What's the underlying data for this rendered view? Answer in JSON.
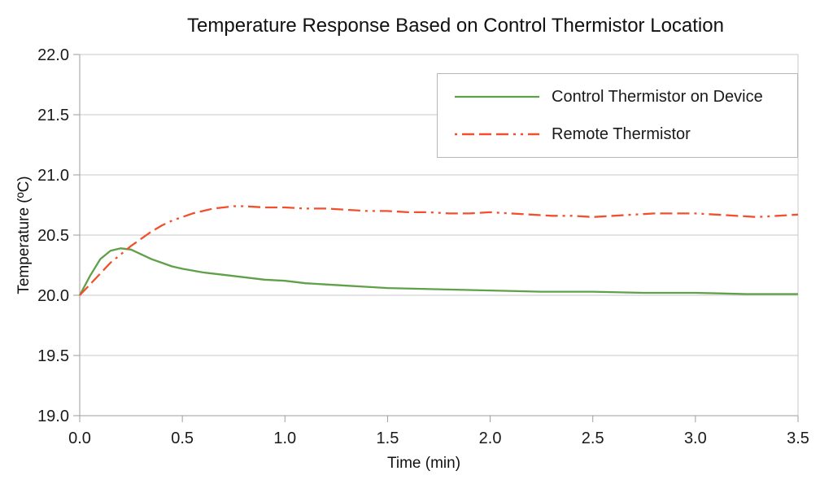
{
  "chart_data": {
    "type": "line",
    "title": "Temperature Response Based on Control Thermistor Location",
    "xlabel": "Time (min)",
    "ylabel": "Temperature (ºC)",
    "xlim": [
      0.0,
      3.5
    ],
    "ylim": [
      19.0,
      22.0
    ],
    "x_ticks": [
      0.0,
      0.5,
      1.0,
      1.5,
      2.0,
      2.5,
      3.0,
      3.5
    ],
    "y_ticks": [
      19.0,
      19.5,
      20.0,
      20.5,
      21.0,
      21.5,
      22.0
    ],
    "grid": "horizontal-only",
    "legend_position": "top-right",
    "colors": {
      "grid": "#c8c8c8",
      "axis": "#9e9e9e",
      "text": "#1a1a1a",
      "legend_border": "#b7b7b7",
      "background": "#ffffff"
    },
    "series": [
      {
        "name": "Control Thermistor on Device",
        "color": "#5fa049",
        "style": "solid",
        "x": [
          0.0,
          0.05,
          0.1,
          0.15,
          0.2,
          0.25,
          0.3,
          0.35,
          0.4,
          0.45,
          0.5,
          0.6,
          0.7,
          0.8,
          0.9,
          1.0,
          1.1,
          1.2,
          1.3,
          1.4,
          1.5,
          1.75,
          2.0,
          2.25,
          2.5,
          2.75,
          3.0,
          3.25,
          3.5
        ],
        "y": [
          20.0,
          20.16,
          20.3,
          20.37,
          20.39,
          20.38,
          20.34,
          20.3,
          20.27,
          20.24,
          20.22,
          20.19,
          20.17,
          20.15,
          20.13,
          20.12,
          20.1,
          20.09,
          20.08,
          20.07,
          20.06,
          20.05,
          20.04,
          20.03,
          20.03,
          20.02,
          20.02,
          20.01,
          20.01
        ]
      },
      {
        "name": "Remote Thermistor",
        "color": "#f0502d",
        "style": "long-dash-dot-dot",
        "x": [
          0.0,
          0.05,
          0.1,
          0.15,
          0.2,
          0.25,
          0.3,
          0.35,
          0.4,
          0.45,
          0.5,
          0.55,
          0.6,
          0.65,
          0.7,
          0.75,
          0.8,
          0.9,
          1.0,
          1.1,
          1.2,
          1.3,
          1.4,
          1.5,
          1.6,
          1.7,
          1.8,
          1.9,
          2.0,
          2.1,
          2.2,
          2.3,
          2.4,
          2.5,
          2.6,
          2.7,
          2.8,
          2.9,
          3.0,
          3.1,
          3.2,
          3.3,
          3.4,
          3.5
        ],
        "y": [
          20.0,
          20.09,
          20.18,
          20.27,
          20.34,
          20.41,
          20.47,
          20.53,
          20.58,
          20.62,
          20.65,
          20.68,
          20.7,
          20.72,
          20.73,
          20.74,
          20.74,
          20.73,
          20.73,
          20.72,
          20.72,
          20.71,
          20.7,
          20.7,
          20.69,
          20.69,
          20.68,
          20.68,
          20.69,
          20.68,
          20.67,
          20.66,
          20.66,
          20.65,
          20.66,
          20.67,
          20.68,
          20.68,
          20.68,
          20.67,
          20.66,
          20.65,
          20.66,
          20.67
        ]
      }
    ]
  }
}
